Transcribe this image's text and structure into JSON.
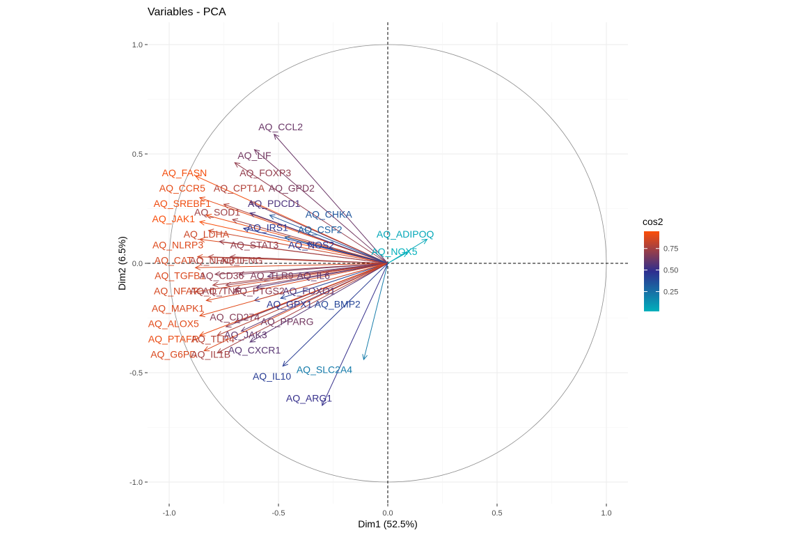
{
  "chart_data": {
    "type": "scatter",
    "title": "Variables - PCA",
    "xlabel": "Dim1 (52.5%)",
    "ylabel": "Dim2 (6.5%)",
    "xlim": [
      -1.1,
      1.1
    ],
    "ylim": [
      -1.1,
      1.1
    ],
    "x_ticks": [
      -1.0,
      -0.5,
      0.0,
      0.5,
      1.0
    ],
    "x_tick_labels": [
      "-1.0",
      "-0.5",
      "0.0",
      "0.5",
      "1.0"
    ],
    "y_ticks": [
      -1.0,
      -0.5,
      0.0,
      0.5,
      1.0
    ],
    "y_tick_labels": [
      "-1.0",
      "-0.5",
      "0.0",
      "0.5",
      "1.0"
    ],
    "grid": true,
    "unit_circle": true,
    "legend": {
      "title": "cos2",
      "position": "right",
      "ticks": [
        0.25,
        0.5,
        0.75
      ],
      "tick_labels": [
        "0.25",
        "0.50",
        "0.75"
      ],
      "range": [
        0.02,
        0.95
      ],
      "colors": [
        "#00AFBB",
        "#2E2E8F",
        "#FC4E07"
      ]
    },
    "variables": [
      {
        "name": "AQ_CCL2",
        "x": -0.52,
        "y": 0.59,
        "lx": -0.49,
        "ly": 0.62,
        "cos2": 0.62
      },
      {
        "name": "AQ_LIF",
        "x": -0.61,
        "y": 0.52,
        "lx": -0.61,
        "ly": 0.49,
        "cos2": 0.64
      },
      {
        "name": "AQ_FASN",
        "x": -0.88,
        "y": 0.4,
        "lx": -0.93,
        "ly": 0.41,
        "cos2": 0.93
      },
      {
        "name": "AQ_FOXP3",
        "x": -0.7,
        "y": 0.46,
        "lx": -0.56,
        "ly": 0.41,
        "cos2": 0.71
      },
      {
        "name": "AQ_CCR5",
        "x": -0.86,
        "y": 0.3,
        "lx": -0.94,
        "ly": 0.34,
        "cos2": 0.9
      },
      {
        "name": "AQ_CPT1A",
        "x": -0.75,
        "y": 0.27,
        "lx": -0.68,
        "ly": 0.34,
        "cos2": 0.78
      },
      {
        "name": "AQ_GPD2",
        "x": -0.63,
        "y": 0.28,
        "lx": -0.44,
        "ly": 0.34,
        "cos2": 0.66
      },
      {
        "name": "AQ_SREBF1",
        "x": -0.83,
        "y": 0.22,
        "lx": -0.94,
        "ly": 0.27,
        "cos2": 0.92
      },
      {
        "name": "AQ_PDCD1",
        "x": -0.63,
        "y": 0.23,
        "lx": -0.52,
        "ly": 0.27,
        "cos2": 0.55
      },
      {
        "name": "AQ_CHKA",
        "x": -0.54,
        "y": 0.22,
        "lx": -0.27,
        "ly": 0.22,
        "cos2": 0.34
      },
      {
        "name": "AQ_SOD1",
        "x": -0.71,
        "y": 0.2,
        "lx": -0.78,
        "ly": 0.23,
        "cos2": 0.74
      },
      {
        "name": "AQ_JAK1",
        "x": -0.86,
        "y": 0.19,
        "lx": -0.98,
        "ly": 0.2,
        "cos2": 0.94
      },
      {
        "name": "AQ_IRS1",
        "x": -0.66,
        "y": 0.16,
        "lx": -0.55,
        "ly": 0.16,
        "cos2": 0.45
      },
      {
        "name": "AQ_CSF2",
        "x": -0.47,
        "y": 0.12,
        "lx": -0.31,
        "ly": 0.15,
        "cos2": 0.3
      },
      {
        "name": "AQ_LDHA",
        "x": -0.82,
        "y": 0.15,
        "lx": -0.83,
        "ly": 0.13,
        "cos2": 0.84
      },
      {
        "name": "AQ_NLRP3",
        "x": -0.86,
        "y": 0.11,
        "lx": -0.96,
        "ly": 0.08,
        "cos2": 0.88
      },
      {
        "name": "AQ_STAT3",
        "x": -0.77,
        "y": 0.1,
        "lx": -0.61,
        "ly": 0.08,
        "cos2": 0.71
      },
      {
        "name": "AQ_NOS2",
        "x": -0.37,
        "y": 0.09,
        "lx": -0.35,
        "ly": 0.08,
        "cos2": 0.46
      },
      {
        "name": "AQ_CAT",
        "x": -0.87,
        "y": 0.03,
        "lx": -0.98,
        "ly": 0.01,
        "cos2": 0.86
      },
      {
        "name": "AQ_NFKB1",
        "x": -0.82,
        "y": 0.03,
        "lx": -0.79,
        "ly": 0.01,
        "cos2": 0.77
      },
      {
        "name": "AQ_IFNG",
        "x": -0.72,
        "y": 0.03,
        "lx": -0.67,
        "ly": 0.01,
        "cos2": 0.74
      },
      {
        "name": "AQ_TGFB1",
        "x": -0.88,
        "y": -0.02,
        "lx": -0.95,
        "ly": -0.06,
        "cos2": 0.87
      },
      {
        "name": "AQ_CD36",
        "x": -0.79,
        "y": -0.05,
        "lx": -0.76,
        "ly": -0.06,
        "cos2": 0.7
      },
      {
        "name": "AQ_TLR9",
        "x": -0.68,
        "y": -0.05,
        "lx": -0.53,
        "ly": -0.06,
        "cos2": 0.67
      },
      {
        "name": "AQ_IL6",
        "x": -0.55,
        "y": -0.06,
        "lx": -0.34,
        "ly": -0.06,
        "cos2": 0.6
      },
      {
        "name": "AQ_NFAT",
        "x": -0.88,
        "y": -0.13,
        "lx": -0.97,
        "ly": -0.13,
        "cos2": 0.86
      },
      {
        "name": "AQ_IL7",
        "x": -0.8,
        "y": -0.1,
        "lx": -0.83,
        "ly": -0.13,
        "cos2": 0.76
      },
      {
        "name": "AQ_TNF",
        "x": -0.74,
        "y": -0.1,
        "lx": -0.76,
        "ly": -0.13,
        "cos2": 0.72
      },
      {
        "name": "AQ_PTGS2",
        "x": -0.7,
        "y": -0.12,
        "lx": -0.59,
        "ly": -0.13,
        "cos2": 0.69
      },
      {
        "name": "AQ_FOXO1",
        "x": -0.6,
        "y": -0.11,
        "lx": -0.36,
        "ly": -0.13,
        "cos2": 0.57
      },
      {
        "name": "AQ_GPX1",
        "x": -0.61,
        "y": -0.17,
        "lx": -0.45,
        "ly": -0.19,
        "cos2": 0.46
      },
      {
        "name": "AQ_BMP2",
        "x": -0.49,
        "y": -0.16,
        "lx": -0.23,
        "ly": -0.19,
        "cos2": 0.4
      },
      {
        "name": "AQ_MAPK1",
        "x": -0.83,
        "y": -0.17,
        "lx": -0.96,
        "ly": -0.21,
        "cos2": 0.87
      },
      {
        "name": "AQ_CD274",
        "x": -0.74,
        "y": -0.29,
        "lx": -0.7,
        "ly": -0.25,
        "cos2": 0.68
      },
      {
        "name": "AQ_PPARG",
        "x": -0.7,
        "y": -0.27,
        "lx": -0.46,
        "ly": -0.27,
        "cos2": 0.64
      },
      {
        "name": "AQ_ALOX5",
        "x": -0.86,
        "y": -0.24,
        "lx": -0.98,
        "ly": -0.28,
        "cos2": 0.89
      },
      {
        "name": "AQ_JAK3",
        "x": -0.67,
        "y": -0.31,
        "lx": -0.65,
        "ly": -0.33,
        "cos2": 0.6
      },
      {
        "name": "AQ_PTAFR",
        "x": -0.86,
        "y": -0.33,
        "lx": -0.98,
        "ly": -0.35,
        "cos2": 0.91
      },
      {
        "name": "AQ_TLR4",
        "x": -0.78,
        "y": -0.33,
        "lx": -0.8,
        "ly": -0.35,
        "cos2": 0.79
      },
      {
        "name": "AQ_CXCR1",
        "x": -0.63,
        "y": -0.36,
        "lx": -0.61,
        "ly": -0.4,
        "cos2": 0.58
      },
      {
        "name": "AQ_G6PD",
        "x": -0.84,
        "y": -0.4,
        "lx": -0.98,
        "ly": -0.42,
        "cos2": 0.87
      },
      {
        "name": "AQ_IL1B",
        "x": -0.78,
        "y": -0.41,
        "lx": -0.81,
        "ly": -0.42,
        "cos2": 0.75
      },
      {
        "name": "AQ_IL10",
        "x": -0.48,
        "y": -0.47,
        "lx": -0.53,
        "ly": -0.52,
        "cos2": 0.43
      },
      {
        "name": "AQ_SLC2A4",
        "x": -0.11,
        "y": -0.44,
        "lx": -0.29,
        "ly": -0.49,
        "cos2": 0.21
      },
      {
        "name": "AQ_ARG1",
        "x": -0.3,
        "y": -0.65,
        "lx": -0.36,
        "ly": -0.62,
        "cos2": 0.5
      },
      {
        "name": "AQ_ADIPOQ",
        "x": 0.18,
        "y": 0.11,
        "lx": 0.08,
        "ly": 0.13,
        "cos2": 0.05
      },
      {
        "name": "AQ_NOX5",
        "x": 0.09,
        "y": 0.05,
        "lx": 0.03,
        "ly": 0.05,
        "cos2": 0.02
      }
    ]
  }
}
